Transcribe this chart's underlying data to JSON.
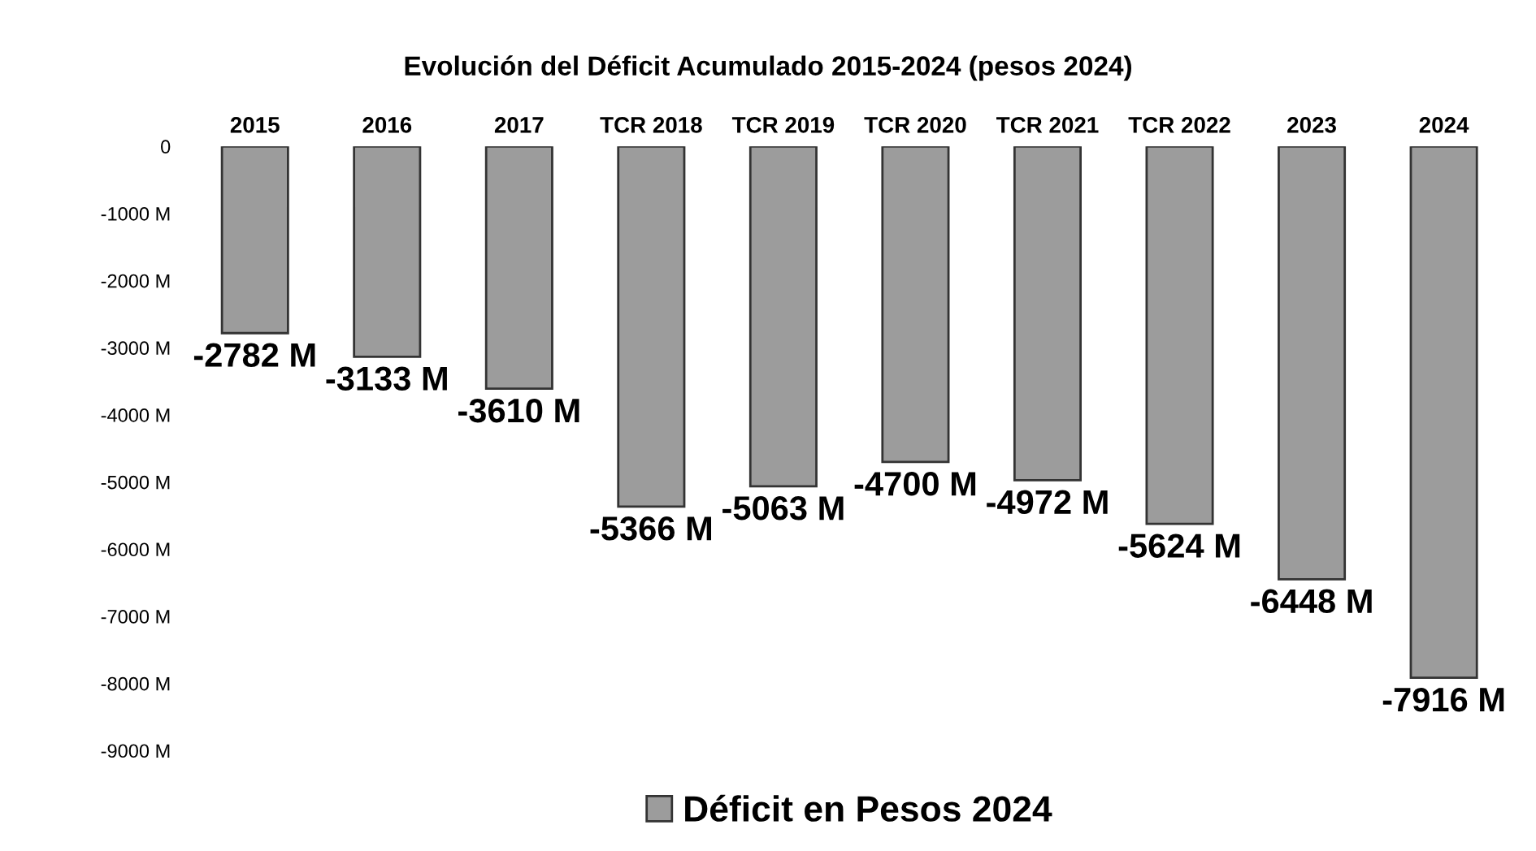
{
  "chart_data": {
    "type": "bar",
    "title": "Evolución del Déficit Acumulado 2015-2024 (pesos 2024)",
    "categories": [
      "2015",
      "2016",
      "2017",
      "TCR 2018",
      "TCR 2019",
      "TCR 2020",
      "TCR 2021",
      "TCR 2022",
      "2023",
      "2024"
    ],
    "series": [
      {
        "name": "Déficit en Pesos 2024",
        "color": "#9c9c9c",
        "values": [
          -2782,
          -3133,
          -3610,
          -5366,
          -5063,
          -4700,
          -4972,
          -5624,
          -6448,
          -7916
        ],
        "value_labels": [
          "-2782 M",
          "-3133 M",
          "-3610 M",
          "-5366 M",
          "-5063 M",
          "-4700 M",
          "-4972 M",
          "-5624 M",
          "-6448 M",
          "-7916 M"
        ]
      }
    ],
    "ylim": [
      -9000,
      0
    ],
    "yticks": [
      0,
      {
        "value": -1000,
        "label": "-1000 M"
      },
      {
        "value": -2000,
        "label": "-2000 M"
      },
      {
        "value": -3000,
        "label": "-3000 M"
      },
      {
        "value": -4000,
        "label": "-4000 M"
      },
      {
        "value": -5000,
        "label": "-5000 M"
      },
      {
        "value": -6000,
        "label": "-6000 M"
      },
      {
        "value": -7000,
        "label": "-7000 M"
      },
      {
        "value": -8000,
        "label": "-8000 M"
      },
      {
        "value": -9000,
        "label": "-9000 M"
      }
    ],
    "grid": false,
    "legend": "bottom"
  }
}
